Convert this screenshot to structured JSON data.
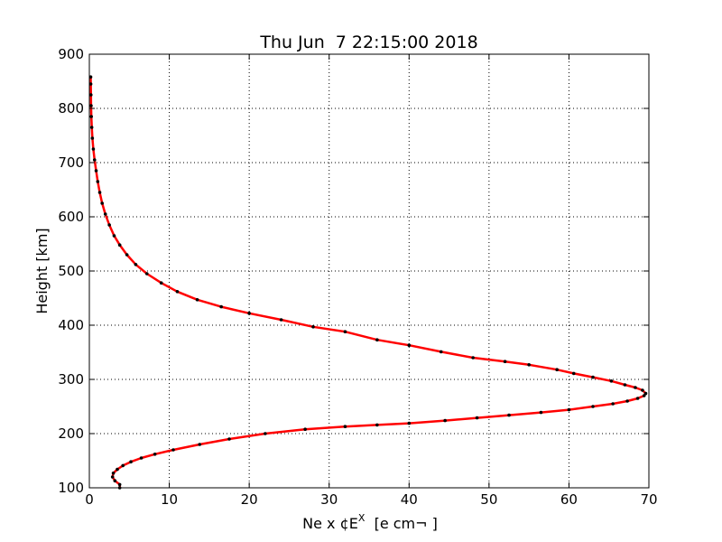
{
  "chart_data": {
    "type": "line",
    "title": "Thu Jun  7 22:15:00 2018",
    "xlabel": "Ne x ¢E",
    "xlabel_sup": "X",
    "xlabel_tail": "  [e cm¬ ]",
    "ylabel": "Height [km]",
    "xlim": [
      0,
      70
    ],
    "ylim": [
      100,
      900
    ],
    "xticks": [
      0,
      10,
      20,
      30,
      40,
      50,
      60,
      70
    ],
    "yticks": [
      100,
      200,
      300,
      400,
      500,
      600,
      700,
      800,
      900
    ],
    "grid": true,
    "series": [
      {
        "color": "#ff0000",
        "marker_color": "#000000",
        "points": [
          [
            3.8,
            100
          ],
          [
            3.8,
            106
          ],
          [
            3.2,
            113
          ],
          [
            2.9,
            120
          ],
          [
            3.0,
            127
          ],
          [
            3.5,
            134
          ],
          [
            4.2,
            141
          ],
          [
            5.2,
            148
          ],
          [
            6.5,
            155
          ],
          [
            8.2,
            162
          ],
          [
            10.5,
            170
          ],
          [
            13.8,
            180
          ],
          [
            17.5,
            190
          ],
          [
            22.0,
            200
          ],
          [
            27.0,
            208
          ],
          [
            32.0,
            213
          ],
          [
            36.0,
            216
          ],
          [
            40.0,
            219
          ],
          [
            44.5,
            224
          ],
          [
            48.5,
            229
          ],
          [
            52.5,
            234
          ],
          [
            56.5,
            239
          ],
          [
            60.0,
            244
          ],
          [
            63.0,
            250
          ],
          [
            65.5,
            255
          ],
          [
            67.3,
            260
          ],
          [
            68.6,
            265
          ],
          [
            69.4,
            270
          ],
          [
            69.6,
            274
          ],
          [
            69.2,
            280
          ],
          [
            68.3,
            285
          ],
          [
            67.0,
            290
          ],
          [
            65.3,
            297
          ],
          [
            63.0,
            304
          ],
          [
            60.6,
            311
          ],
          [
            58.5,
            318
          ],
          [
            55.0,
            327
          ],
          [
            52.0,
            333
          ],
          [
            48.0,
            340
          ],
          [
            44.0,
            351
          ],
          [
            40.0,
            363
          ],
          [
            36.0,
            373
          ],
          [
            32.0,
            388
          ],
          [
            28.0,
            397
          ],
          [
            24.0,
            410
          ],
          [
            20.0,
            422
          ],
          [
            16.5,
            434
          ],
          [
            13.5,
            447
          ],
          [
            11.0,
            462
          ],
          [
            9.0,
            478
          ],
          [
            7.2,
            495
          ],
          [
            5.8,
            512
          ],
          [
            4.7,
            530
          ],
          [
            3.8,
            548
          ],
          [
            3.1,
            565
          ],
          [
            2.5,
            585
          ],
          [
            2.0,
            605
          ],
          [
            1.6,
            625
          ],
          [
            1.3,
            645
          ],
          [
            1.05,
            665
          ],
          [
            0.85,
            685
          ],
          [
            0.65,
            705
          ],
          [
            0.5,
            725
          ],
          [
            0.38,
            745
          ],
          [
            0.3,
            765
          ],
          [
            0.25,
            785
          ],
          [
            0.22,
            805
          ],
          [
            0.2,
            825
          ],
          [
            0.18,
            845
          ],
          [
            0.17,
            858
          ]
        ]
      }
    ]
  }
}
